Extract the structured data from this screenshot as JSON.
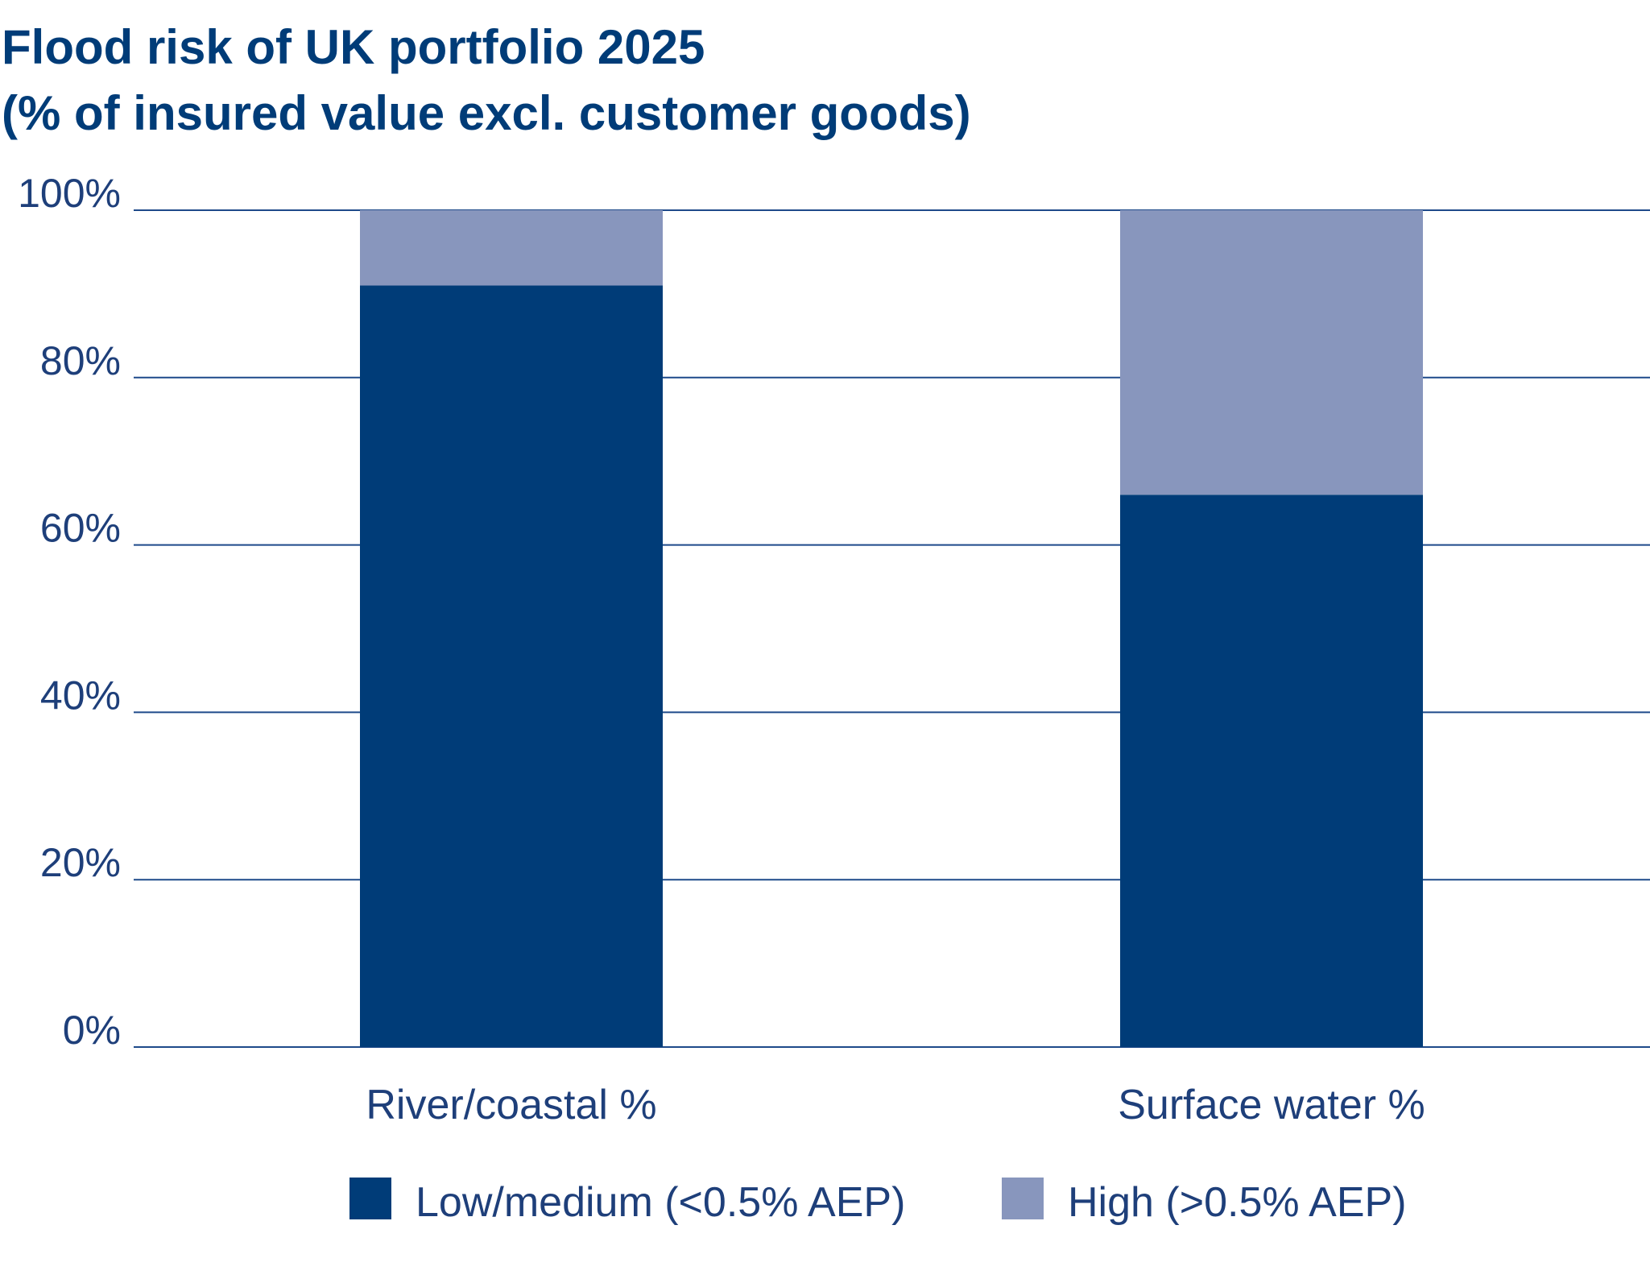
{
  "chart_data": {
    "type": "bar",
    "stacked": true,
    "title": "Flood risk of UK portfolio 2025",
    "subtitle": "(% of insured value excl. customer goods)",
    "categories": [
      "River/coastal %",
      "Surface water %"
    ],
    "series": [
      {
        "name": "Low/medium (<0.5% AEP)",
        "values": [
          91,
          66
        ],
        "color": "#003c78"
      },
      {
        "name": "High (>0.5% AEP)",
        "values": [
          9,
          34
        ],
        "color": "#8896bd"
      }
    ],
    "ylim": [
      0,
      100
    ],
    "yticks": [
      "0%",
      "20%",
      "40%",
      "60%",
      "80%",
      "100%"
    ],
    "grid": true,
    "legend": "bottom"
  }
}
